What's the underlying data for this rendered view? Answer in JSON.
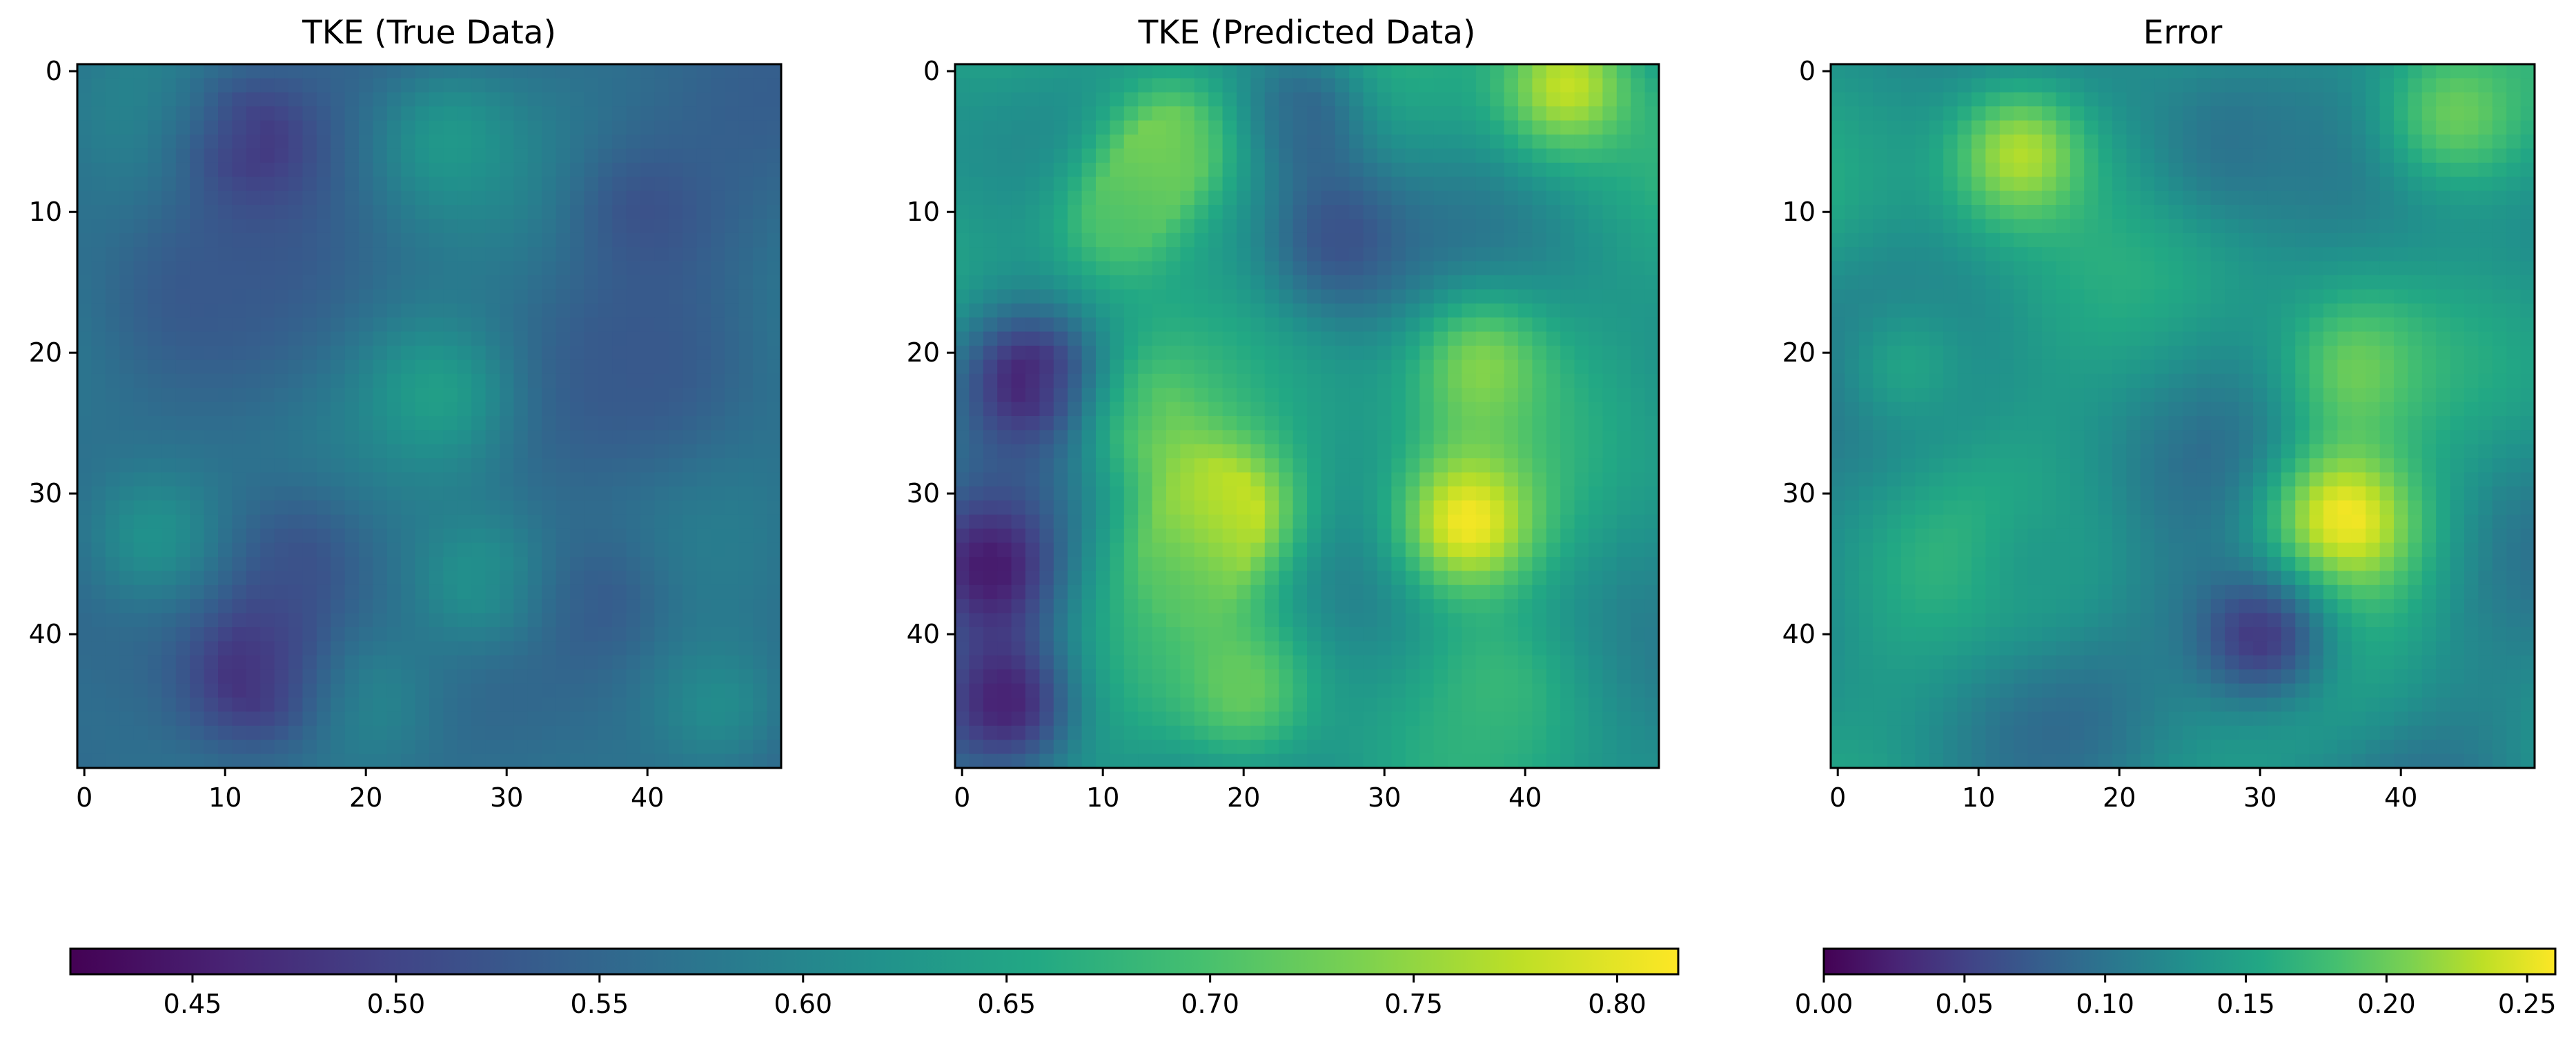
{
  "chart_data": [
    {
      "type": "heatmap",
      "title": "TKE (True Data)",
      "grid_size": [
        50,
        50
      ],
      "x_ticks": [
        0,
        10,
        20,
        30,
        40
      ],
      "y_ticks": [
        0,
        10,
        20,
        30,
        40
      ],
      "colormap": "viridis",
      "vmin": 0.42,
      "vmax": 0.815,
      "value_range": [
        0.47,
        0.65
      ],
      "features": [
        {
          "x": 12,
          "y": 5,
          "value": 0.48
        },
        {
          "x": 26,
          "y": 5,
          "value": 0.63
        },
        {
          "x": 5,
          "y": 2,
          "value": 0.6
        },
        {
          "x": 40,
          "y": 10,
          "value": 0.52
        },
        {
          "x": 8,
          "y": 16,
          "value": 0.53
        },
        {
          "x": 25,
          "y": 23,
          "value": 0.64
        },
        {
          "x": 40,
          "y": 21,
          "value": 0.53
        },
        {
          "x": 15,
          "y": 35,
          "value": 0.52
        },
        {
          "x": 5,
          "y": 33,
          "value": 0.62
        },
        {
          "x": 28,
          "y": 36,
          "value": 0.62
        },
        {
          "x": 12,
          "y": 43,
          "value": 0.47
        },
        {
          "x": 36,
          "y": 38,
          "value": 0.53
        },
        {
          "x": 45,
          "y": 45,
          "value": 0.61
        },
        {
          "x": 20,
          "y": 45,
          "value": 0.6
        }
      ]
    },
    {
      "type": "heatmap",
      "title": "TKE (Predicted Data)",
      "grid_size": [
        50,
        50
      ],
      "x_ticks": [
        0,
        10,
        20,
        30,
        40
      ],
      "y_ticks": [
        0,
        10,
        20,
        30,
        40
      ],
      "colormap": "viridis",
      "vmin": 0.42,
      "vmax": 0.815,
      "value_range": [
        0.43,
        0.81
      ],
      "features": [
        {
          "x": 15,
          "y": 5,
          "value": 0.74
        },
        {
          "x": 43,
          "y": 1,
          "value": 0.78
        },
        {
          "x": 11,
          "y": 11,
          "value": 0.7
        },
        {
          "x": 5,
          "y": 22,
          "value": 0.45
        },
        {
          "x": 2,
          "y": 35,
          "value": 0.45
        },
        {
          "x": 13,
          "y": 24,
          "value": 0.72
        },
        {
          "x": 19,
          "y": 31,
          "value": 0.79
        },
        {
          "x": 36,
          "y": 32,
          "value": 0.81
        },
        {
          "x": 37,
          "y": 21,
          "value": 0.74
        },
        {
          "x": 15,
          "y": 36,
          "value": 0.7
        },
        {
          "x": 20,
          "y": 44,
          "value": 0.72
        },
        {
          "x": 38,
          "y": 44,
          "value": 0.68
        },
        {
          "x": 27,
          "y": 12,
          "value": 0.52
        },
        {
          "x": 3,
          "y": 45,
          "value": 0.46
        },
        {
          "x": 24,
          "y": 3,
          "value": 0.55
        }
      ]
    },
    {
      "type": "heatmap",
      "title": "Error",
      "grid_size": [
        50,
        50
      ],
      "x_ticks": [
        0,
        10,
        20,
        30,
        40
      ],
      "y_ticks": [
        0,
        10,
        20,
        30,
        40
      ],
      "colormap": "viridis",
      "vmin": 0.0,
      "vmax": 0.26,
      "value_range": [
        0.0,
        0.26
      ],
      "features": [
        {
          "x": 13,
          "y": 6,
          "value": 0.23
        },
        {
          "x": 37,
          "y": 21,
          "value": 0.2
        },
        {
          "x": 36,
          "y": 32,
          "value": 0.26
        },
        {
          "x": 5,
          "y": 21,
          "value": 0.15
        },
        {
          "x": 15,
          "y": 35,
          "value": 0.14
        },
        {
          "x": 44,
          "y": 3,
          "value": 0.2
        },
        {
          "x": 30,
          "y": 40,
          "value": 0.04
        },
        {
          "x": 28,
          "y": 5,
          "value": 0.1
        }
      ]
    },
    {
      "type": "colorbar",
      "name": "tke-colorbar",
      "colormap": "viridis",
      "range": [
        0.42,
        0.815
      ],
      "ticks": [
        0.45,
        0.5,
        0.55,
        0.6,
        0.65,
        0.7,
        0.75,
        0.8
      ],
      "tick_labels": [
        "0.45",
        "0.50",
        "0.55",
        "0.60",
        "0.65",
        "0.70",
        "0.75",
        "0.80"
      ]
    },
    {
      "type": "colorbar",
      "name": "error-colorbar",
      "colormap": "viridis",
      "range": [
        0.0,
        0.26
      ],
      "ticks": [
        0.0,
        0.05,
        0.1,
        0.15,
        0.2,
        0.25
      ],
      "tick_labels": [
        "0.00",
        "0.05",
        "0.10",
        "0.15",
        "0.20",
        "0.25"
      ]
    }
  ]
}
